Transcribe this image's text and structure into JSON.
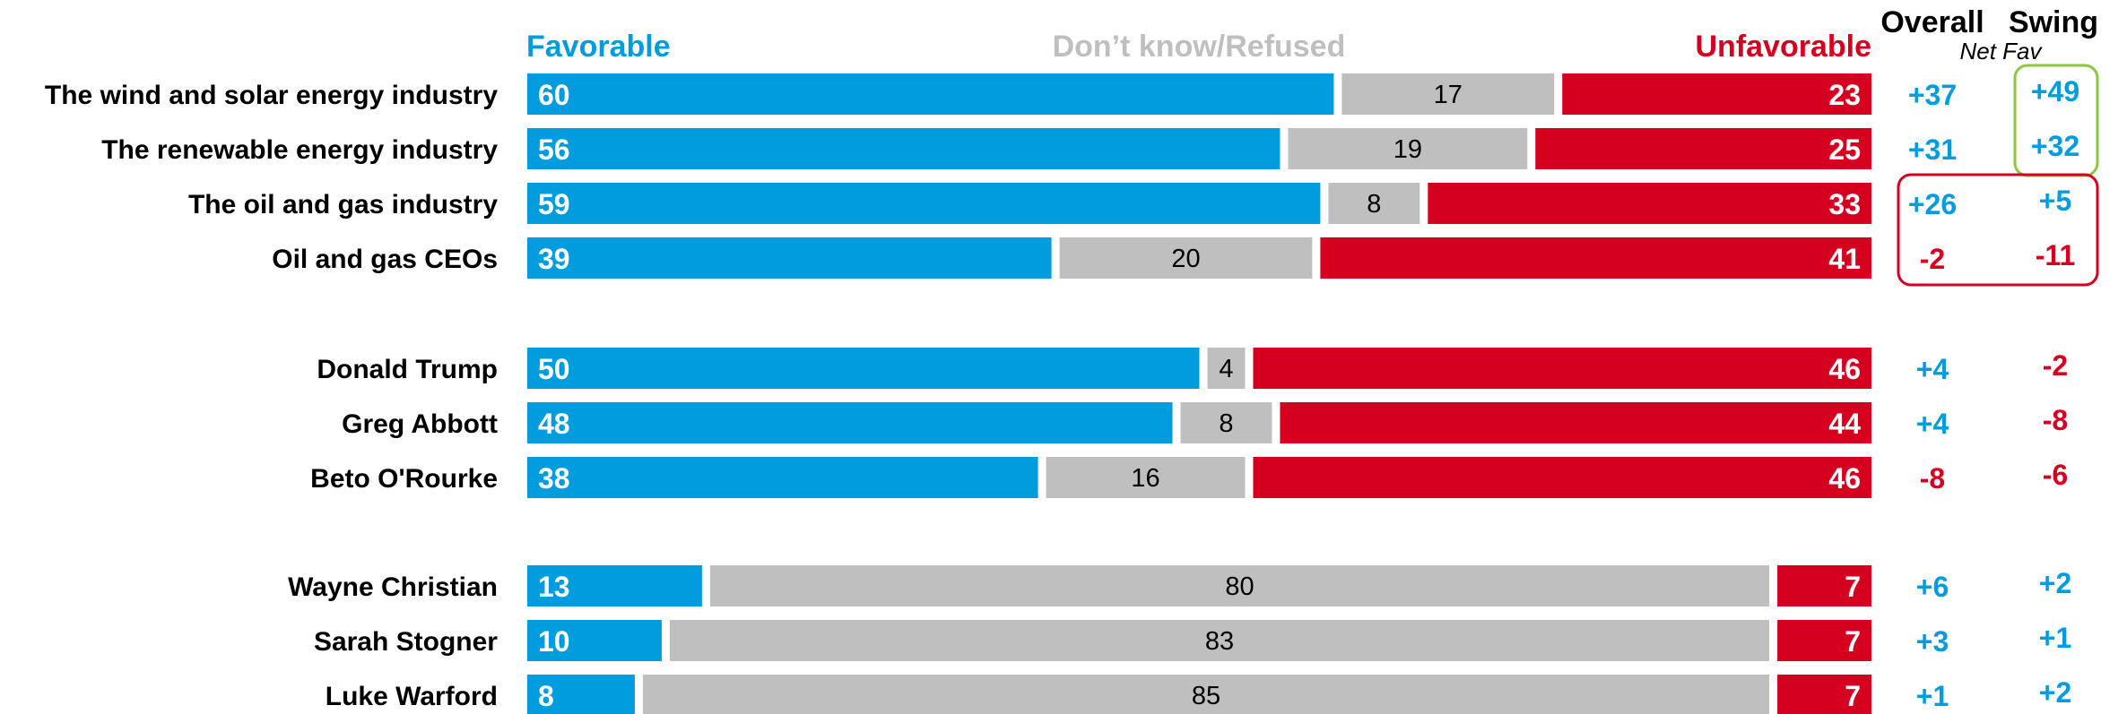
{
  "chart_data": {
    "type": "bar",
    "stacked": true,
    "orientation": "horizontal",
    "legend": {
      "favorable": "Favorable",
      "dont_know": "Don’t know/Refused",
      "unfavorable": "Unfavorable"
    },
    "columns": {
      "overall": "Overall",
      "swing": "Swing",
      "net_fav": "Net Fav"
    },
    "colors": {
      "favorable": "#009cde",
      "dont_know": "#bfbfbf",
      "unfavorable": "#d50020",
      "swing_positive_box": "#8dc63f",
      "swing_negative_box": "#d50020"
    },
    "groups": [
      {
        "rows": [
          {
            "label": "The wind and solar energy industry",
            "favorable": "60",
            "dont_know": "17",
            "unfavorable": "23",
            "overall": "+37",
            "swing": "+49"
          },
          {
            "label": "The renewable energy industry",
            "favorable": "56",
            "dont_know": "19",
            "unfavorable": "25",
            "overall": "+31",
            "swing": "+32"
          },
          {
            "label": "The oil and gas industry",
            "favorable": "59",
            "dont_know": "8",
            "unfavorable": "33",
            "overall": "+26",
            "swing": "+5"
          },
          {
            "label": "Oil and gas CEOs",
            "favorable": "39",
            "dont_know": "20",
            "unfavorable": "41",
            "overall": "-2",
            "swing": "-11"
          }
        ]
      },
      {
        "rows": [
          {
            "label": "Donald Trump",
            "favorable": "50",
            "dont_know": "4",
            "unfavorable": "46",
            "overall": "+4",
            "swing": "-2"
          },
          {
            "label": "Greg Abbott",
            "favorable": "48",
            "dont_know": "8",
            "unfavorable": "44",
            "overall": "+4",
            "swing": "-8"
          },
          {
            "label": "Beto O'Rourke",
            "favorable": "38",
            "dont_know": "16",
            "unfavorable": "46",
            "overall": "-8",
            "swing": "-6"
          }
        ]
      },
      {
        "rows": [
          {
            "label": "Wayne Christian",
            "favorable": "13",
            "dont_know": "80",
            "unfavorable": "7",
            "overall": "+6",
            "swing": "+2"
          },
          {
            "label": "Sarah Stogner",
            "favorable": "10",
            "dont_know": "83",
            "unfavorable": "7",
            "overall": "+3",
            "swing": "+1"
          },
          {
            "label": "Luke Warford",
            "favorable": "8",
            "dont_know": "85",
            "unfavorable": "7",
            "overall": "+1",
            "swing": "+2"
          }
        ]
      }
    ],
    "highlight_boxes": [
      {
        "column": "swing",
        "rows": [
          "The wind and solar energy industry",
          "The renewable energy industry"
        ],
        "color": "green"
      },
      {
        "column": "overall+swing",
        "rows": [
          "The oil and gas industry",
          "Oil and gas CEOs"
        ],
        "color": "red"
      }
    ]
  }
}
